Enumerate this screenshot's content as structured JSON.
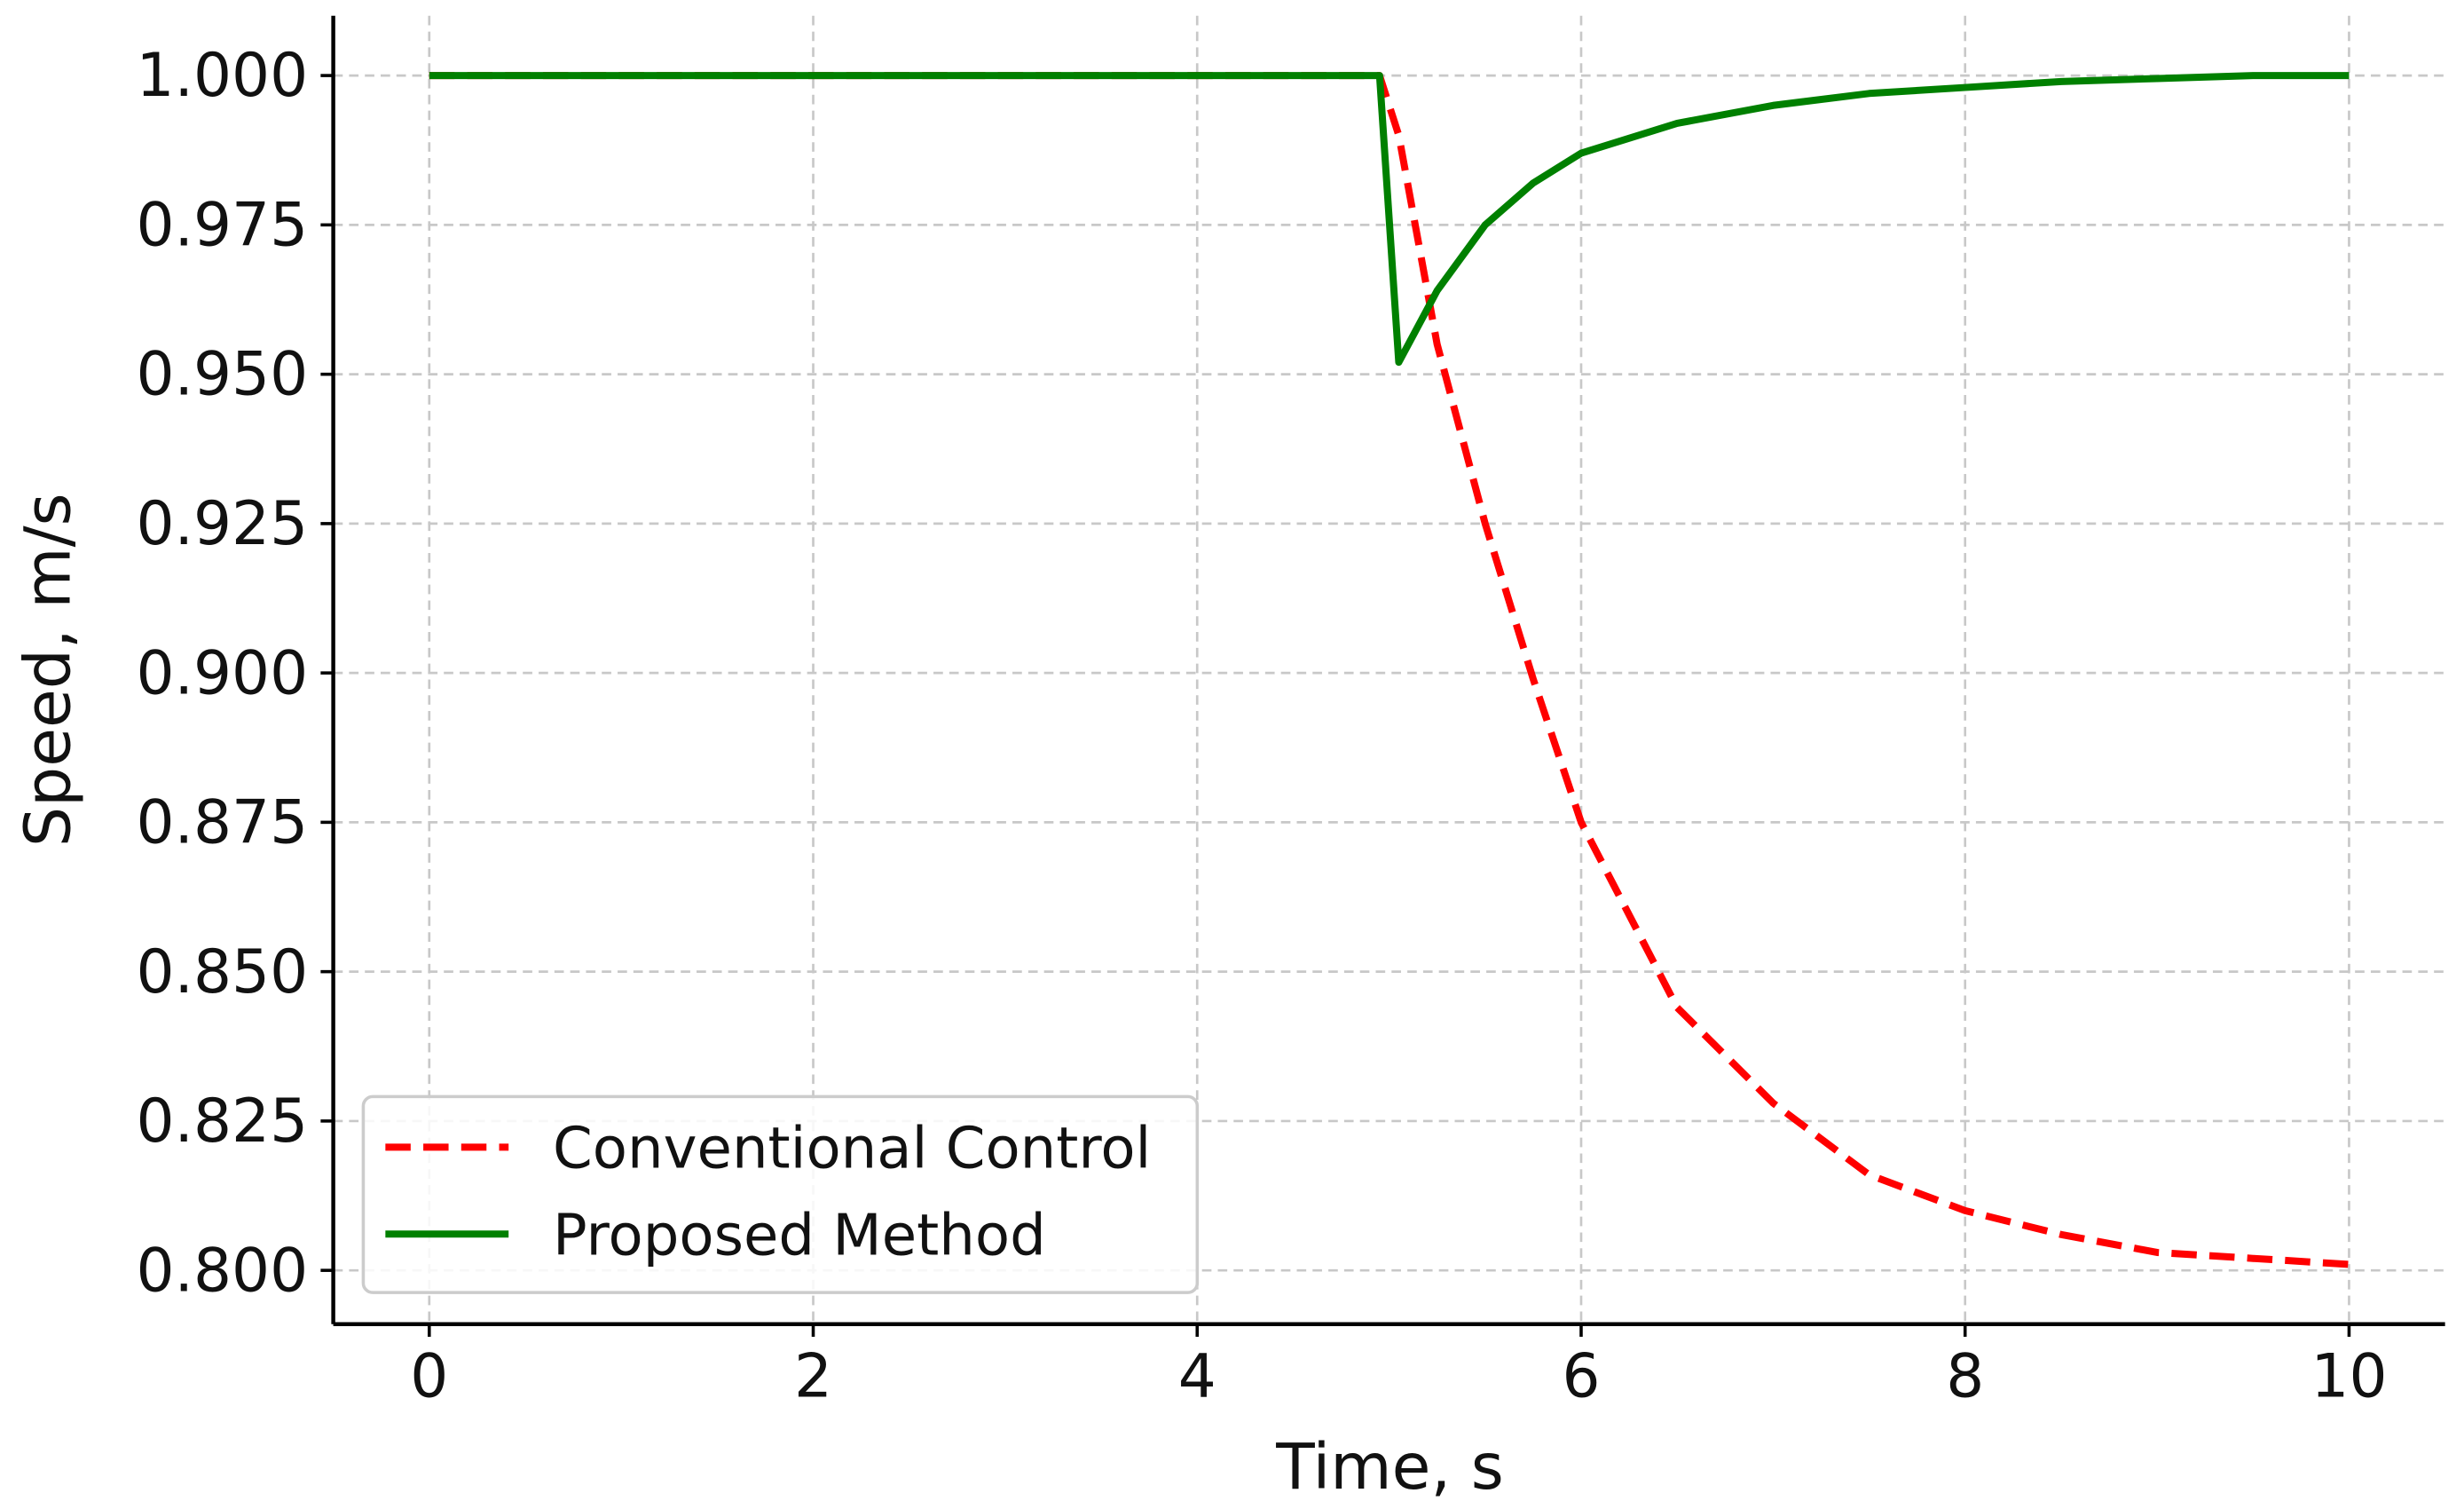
{
  "chart_data": {
    "type": "line",
    "x_label": "Time, s",
    "y_label": "Speed, m/s",
    "x": [
      0,
      4.95,
      5.05,
      5.25,
      5.5,
      5.75,
      6,
      6.5,
      7,
      7.5,
      8,
      8.5,
      9,
      9.5,
      10
    ],
    "series": [
      {
        "name": "Conventional Control",
        "color": "#ff0000",
        "dash": true,
        "values": [
          1,
          1,
          0.99,
          0.955,
          0.925,
          0.899,
          0.875,
          0.844,
          0.828,
          0.816,
          0.81,
          0.806,
          0.803,
          0.802,
          0.801
        ]
      },
      {
        "name": "Proposed Method",
        "color": "#008000",
        "dash": false,
        "values": [
          1,
          1,
          0.952,
          0.964,
          0.975,
          0.982,
          0.987,
          0.992,
          0.995,
          0.997,
          0.998,
          0.999,
          0.9995,
          1,
          1
        ]
      }
    ],
    "xlim": [
      -0.5,
      10.5
    ],
    "ylim": [
      0.791,
      1.01
    ],
    "xticks": [
      0,
      2,
      4,
      6,
      8,
      10
    ],
    "yticks": [
      {
        "value": 0.8,
        "label": "0.800"
      },
      {
        "value": 0.825,
        "label": "0.825"
      },
      {
        "value": 0.85,
        "label": "0.850"
      },
      {
        "value": 0.875,
        "label": "0.875"
      },
      {
        "value": 0.9,
        "label": "0.900"
      },
      {
        "value": 0.925,
        "label": "0.925"
      },
      {
        "value": 0.95,
        "label": "0.950"
      },
      {
        "value": 0.975,
        "label": "0.975"
      },
      {
        "value": 1,
        "label": "1.000"
      }
    ],
    "grid": true,
    "legend": "lower left"
  }
}
